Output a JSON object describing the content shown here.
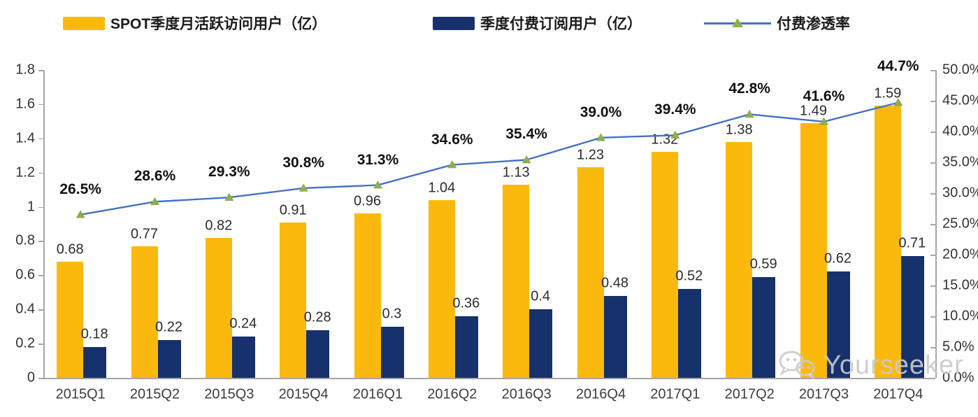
{
  "legend": {
    "items": [
      {
        "label": "SPOT季度月活跃访问用户（亿）",
        "type": "bar-swatch",
        "color": "#FBB90D"
      },
      {
        "label": "季度付费订阅用户（亿）",
        "type": "bar-swatch",
        "color": "#16316B"
      },
      {
        "label": "付费渗透率",
        "type": "line-swatch",
        "color": "#4472C4",
        "marker_color": "#8FB04A"
      }
    ]
  },
  "chart_data": {
    "type": "bar",
    "subtype": "grouped-bars-with-line-combo",
    "categories": [
      "2015Q1",
      "2015Q2",
      "2015Q3",
      "2015Q4",
      "2016Q1",
      "2016Q2",
      "2016Q3",
      "2016Q4",
      "2017Q1",
      "2017Q2",
      "2017Q3",
      "2017Q4"
    ],
    "series": [
      {
        "name": "SPOT季度月活跃访问用户（亿）",
        "type": "bar",
        "axis": "left",
        "color": "#FBB90D",
        "values": [
          0.68,
          0.77,
          0.82,
          0.91,
          0.96,
          1.04,
          1.13,
          1.23,
          1.32,
          1.38,
          1.49,
          1.59
        ]
      },
      {
        "name": "季度付费订阅用户（亿）",
        "type": "bar",
        "axis": "left",
        "color": "#16316B",
        "values": [
          0.18,
          0.22,
          0.24,
          0.28,
          0.3,
          0.36,
          0.4,
          0.48,
          0.52,
          0.59,
          0.62,
          0.71
        ]
      },
      {
        "name": "付费渗透率",
        "type": "line",
        "axis": "right",
        "color": "#4472C4",
        "marker": "triangle",
        "marker_color": "#8FB04A",
        "values": [
          26.5,
          28.6,
          29.3,
          30.8,
          31.3,
          34.6,
          35.4,
          39.0,
          39.4,
          42.8,
          41.6,
          44.7
        ]
      }
    ],
    "left_axis": {
      "range": [
        0,
        1.8
      ],
      "ticks": [
        "0",
        "0.2",
        "0.4",
        "0.6",
        "0.8",
        "1",
        "1.2",
        "1.4",
        "1.6",
        "1.8"
      ]
    },
    "right_axis": {
      "range": [
        0,
        50
      ],
      "ticks": [
        "0.0%",
        "5.0%",
        "10.0%",
        "15.0%",
        "20.0%",
        "25.0%",
        "30.0%",
        "35.0%",
        "40.0%",
        "45.0%",
        "50.0%"
      ]
    },
    "grid": false,
    "legend_position": "top",
    "title": "",
    "xlabel": "",
    "ylabel": ""
  },
  "watermark": {
    "text": "Yourseeker"
  }
}
